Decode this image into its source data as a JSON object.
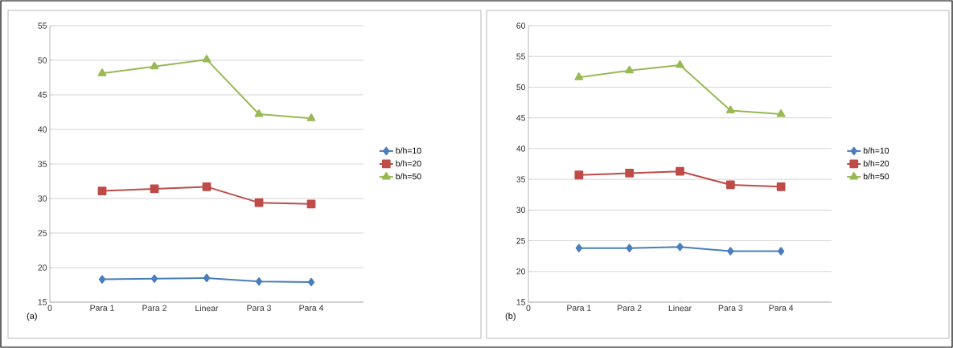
{
  "chart_data": [
    {
      "type": "line",
      "categories": [
        "0",
        "Para 1",
        "Para 2",
        "Linear",
        "Para 3",
        "Para 4"
      ],
      "ylim": [
        15,
        55
      ],
      "yticks": [
        15,
        20,
        25,
        30,
        35,
        40,
        45,
        50,
        55
      ],
      "grid": "y",
      "legend": "right",
      "line_style": "solid",
      "annotations": [
        "(a)"
      ],
      "series": [
        {
          "name": "b/h=10",
          "color": "#4a7ebb",
          "marker": "diamond",
          "values": [
            null,
            18.3,
            18.4,
            18.5,
            18.0,
            17.9
          ]
        },
        {
          "name": "b/h=20",
          "color": "#be4b48",
          "marker": "square",
          "values": [
            null,
            31.1,
            31.4,
            31.7,
            29.4,
            29.2
          ]
        },
        {
          "name": "b/h=50",
          "color": "#98b954",
          "marker": "triangle",
          "values": [
            null,
            48.1,
            49.1,
            50.1,
            42.2,
            41.6
          ]
        }
      ]
    },
    {
      "type": "line",
      "categories": [
        "0",
        "Para 1",
        "Para 2",
        "Linear",
        "Para 3",
        "Para 4"
      ],
      "ylim": [
        15,
        60
      ],
      "yticks": [
        15,
        20,
        25,
        30,
        35,
        40,
        45,
        50,
        55,
        60
      ],
      "grid": "y",
      "legend": "right",
      "line_style": "solid",
      "annotations": [
        "(b)"
      ],
      "series": [
        {
          "name": "b/h=10",
          "color": "#4a7ebb",
          "marker": "diamond",
          "values": [
            null,
            23.8,
            23.8,
            24.0,
            23.3,
            23.3
          ]
        },
        {
          "name": "b/h=20",
          "color": "#be4b48",
          "marker": "square",
          "values": [
            null,
            35.7,
            36.0,
            36.3,
            34.1,
            33.8
          ]
        },
        {
          "name": "b/h=50",
          "color": "#98b954",
          "marker": "triangle",
          "values": [
            null,
            51.6,
            52.7,
            53.6,
            46.2,
            45.6
          ]
        }
      ]
    }
  ]
}
